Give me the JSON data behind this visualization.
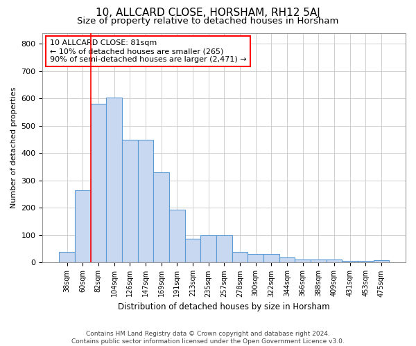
{
  "title1": "10, ALLCARD CLOSE, HORSHAM, RH12 5AJ",
  "title2": "Size of property relative to detached houses in Horsham",
  "xlabel": "Distribution of detached houses by size in Horsham",
  "ylabel": "Number of detached properties",
  "footnote": "Contains HM Land Registry data © Crown copyright and database right 2024.\nContains public sector information licensed under the Open Government Licence v3.0.",
  "categories": [
    "38sqm",
    "60sqm",
    "82sqm",
    "104sqm",
    "126sqm",
    "147sqm",
    "169sqm",
    "191sqm",
    "213sqm",
    "235sqm",
    "257sqm",
    "278sqm",
    "300sqm",
    "322sqm",
    "344sqm",
    "366sqm",
    "388sqm",
    "409sqm",
    "431sqm",
    "453sqm",
    "475sqm"
  ],
  "values": [
    38,
    265,
    580,
    603,
    450,
    450,
    330,
    193,
    88,
    100,
    100,
    38,
    32,
    32,
    18,
    10,
    10,
    10,
    5,
    5,
    8
  ],
  "bar_color": "#c8d8f0",
  "bar_edge_color": "#5b9bd5",
  "red_line_x": 2.0,
  "annotation_box_text": "10 ALLCARD CLOSE: 81sqm\n← 10% of detached houses are smaller (265)\n90% of semi-detached houses are larger (2,471) →",
  "ylim": [
    0,
    840
  ],
  "yticks": [
    0,
    100,
    200,
    300,
    400,
    500,
    600,
    700,
    800
  ],
  "bg_color": "#ffffff",
  "grid_color": "#c8c8c8",
  "title1_fontsize": 11,
  "title2_fontsize": 9.5,
  "axis_fontsize": 8,
  "footnote_fontsize": 6.5
}
